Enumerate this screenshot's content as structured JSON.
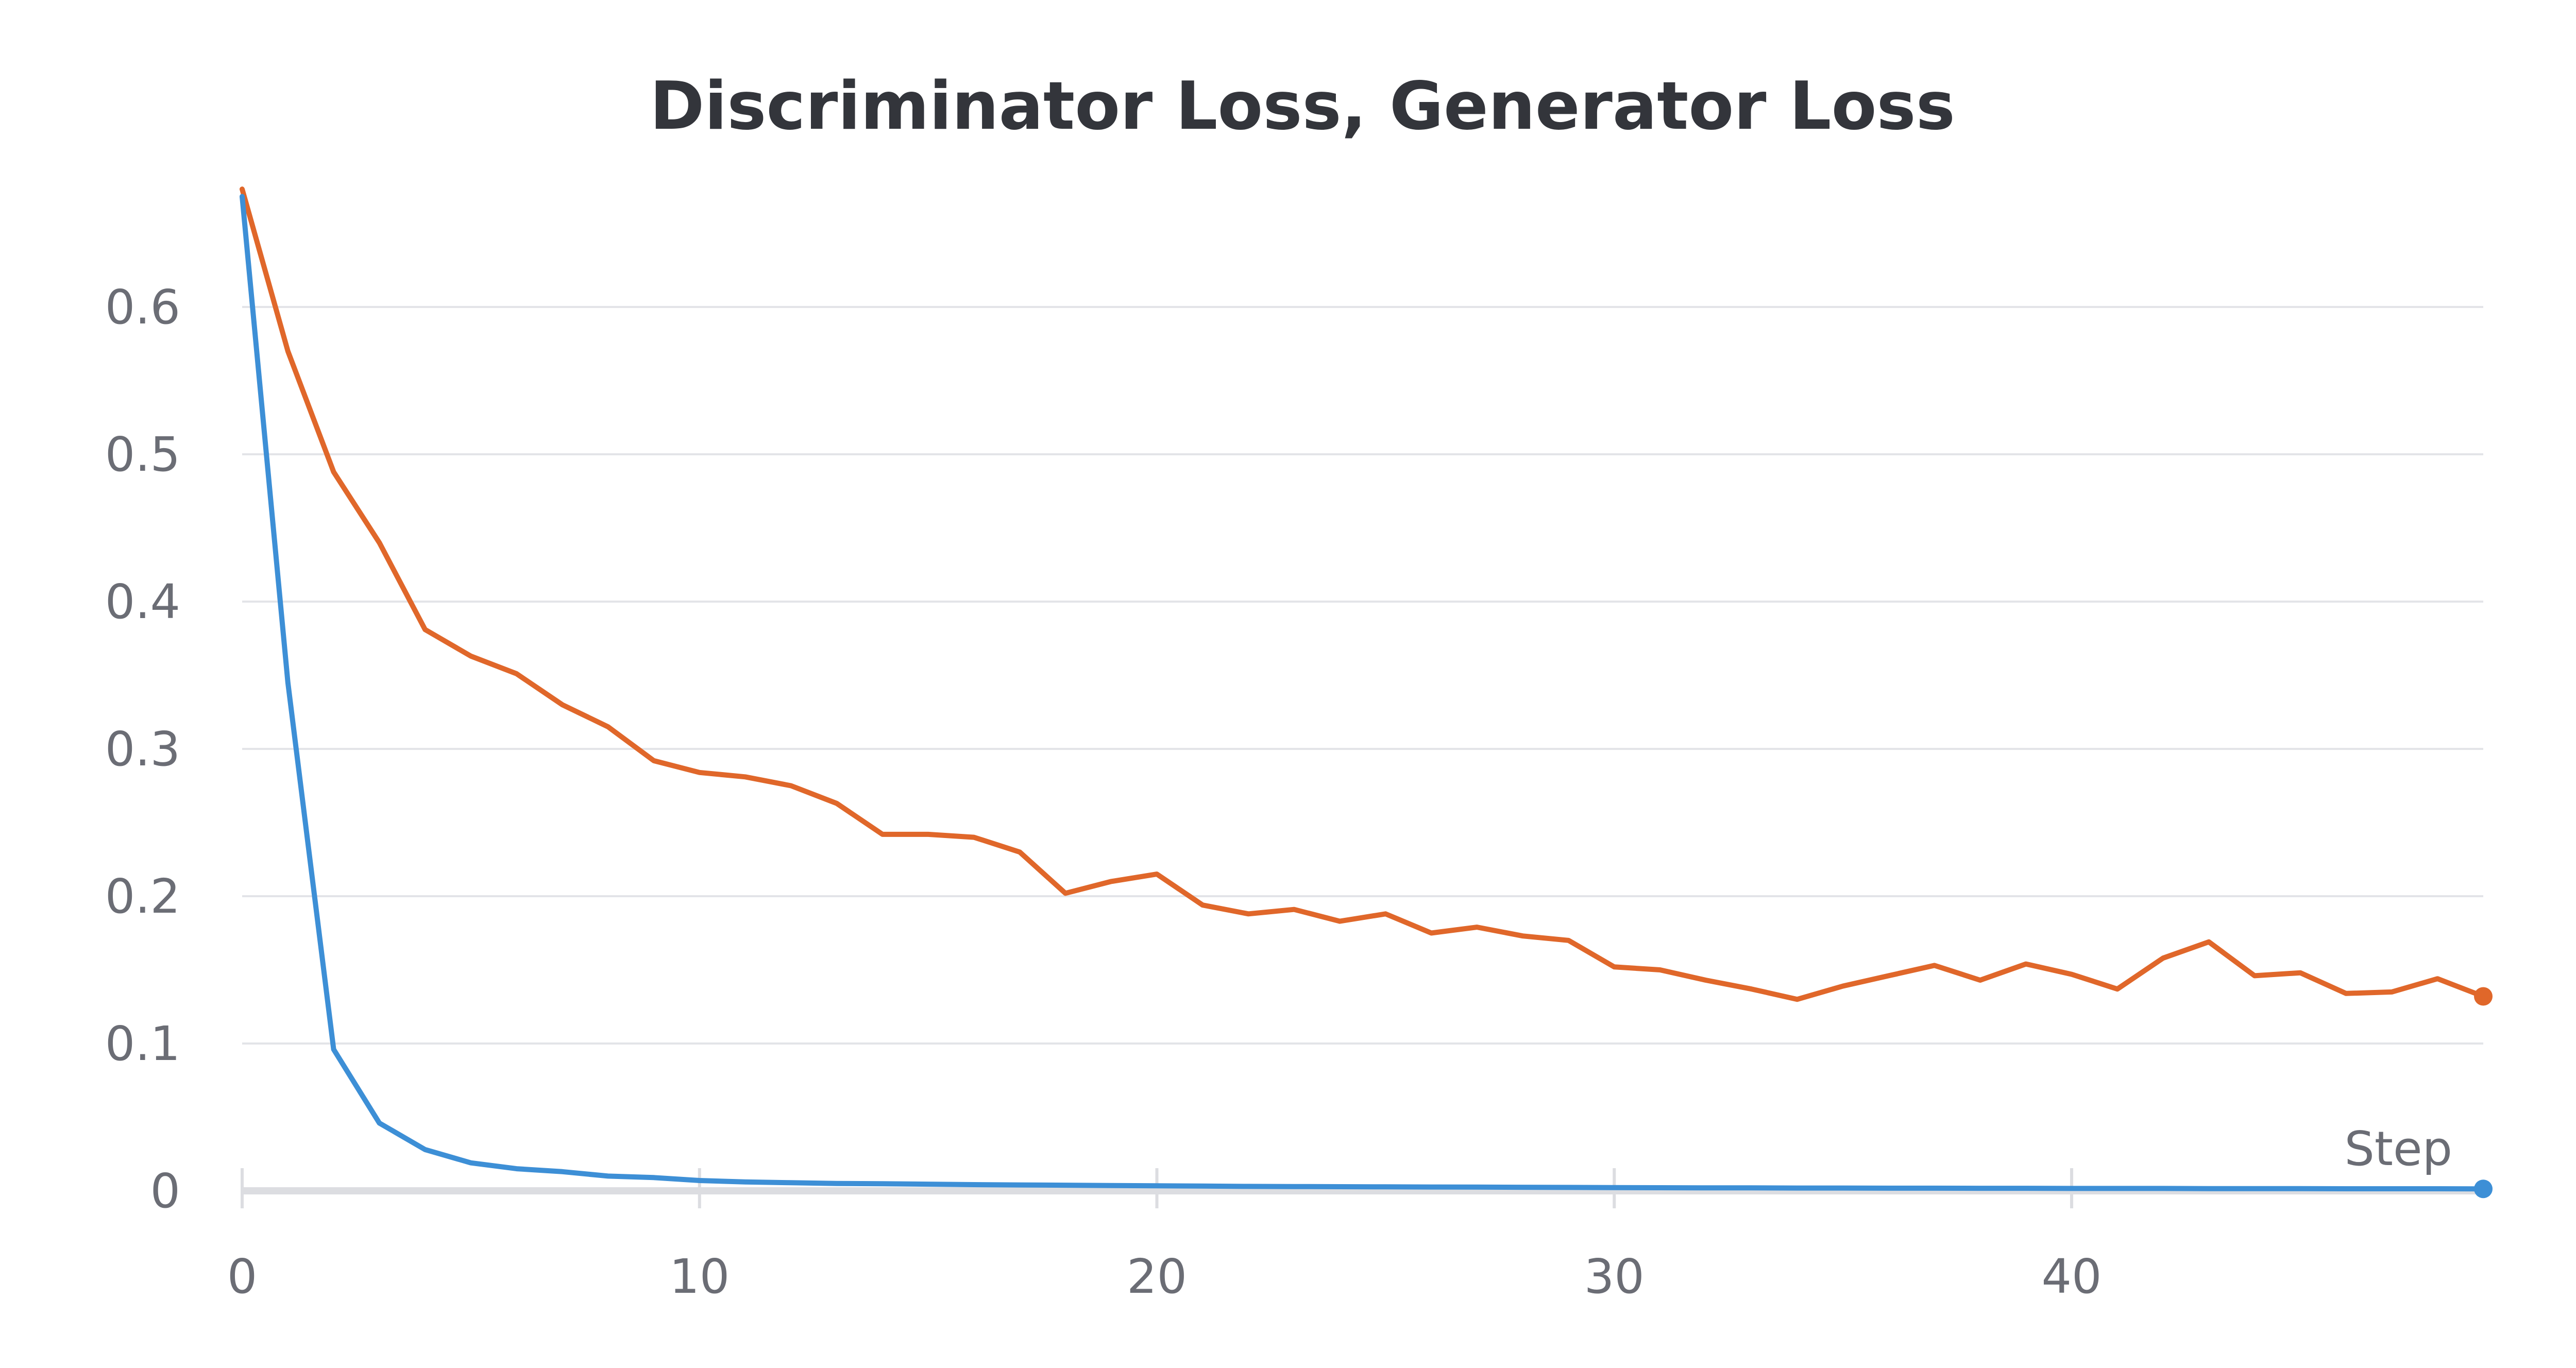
{
  "chart_data": {
    "type": "line",
    "title": "Discriminator Loss, Generator Loss",
    "xlabel": "Step",
    "ylabel": "",
    "xlim": [
      0,
      49
    ],
    "ylim": [
      0,
      0.7
    ],
    "x_ticks": [
      "0",
      "10",
      "20",
      "30",
      "40"
    ],
    "y_ticks": [
      "0",
      "0.1",
      "0.2",
      "0.3",
      "0.4",
      "0.5",
      "0.6"
    ],
    "grid": true,
    "legend": "none",
    "colors": {
      "orange": "#e0672a",
      "blue": "#3d8fd6",
      "grid": "#e3e4e8",
      "axis": "#dcdde1",
      "text": "#6b6d75",
      "title": "#33353b"
    },
    "series": [
      {
        "color": "#e0672a",
        "x": [
          0,
          1,
          2,
          3,
          4,
          5,
          6,
          7,
          8,
          9,
          10,
          11,
          12,
          13,
          14,
          15,
          16,
          17,
          18,
          19,
          20,
          21,
          22,
          23,
          24,
          25,
          26,
          27,
          28,
          29,
          30,
          31,
          32,
          33,
          34,
          35,
          36,
          37,
          38,
          39,
          40,
          41,
          42,
          43,
          44,
          45,
          46,
          47,
          48,
          49
        ],
        "values": [
          0.68,
          0.57,
          0.488,
          0.44,
          0.381,
          0.363,
          0.351,
          0.33,
          0.315,
          0.292,
          0.284,
          0.281,
          0.275,
          0.263,
          0.242,
          0.242,
          0.24,
          0.23,
          0.202,
          0.21,
          0.215,
          0.194,
          0.188,
          0.191,
          0.183,
          0.188,
          0.175,
          0.179,
          0.173,
          0.17,
          0.152,
          0.15,
          0.143,
          0.137,
          0.13,
          0.139,
          0.146,
          0.153,
          0.143,
          0.154,
          0.147,
          0.137,
          0.158,
          0.169,
          0.146,
          0.148,
          0.134,
          0.135,
          0.144,
          0.132
        ]
      },
      {
        "color": "#3d8fd6",
        "x": [
          0,
          1,
          2,
          3,
          4,
          5,
          6,
          7,
          8,
          9,
          10,
          11,
          12,
          13,
          14,
          15,
          16,
          17,
          18,
          19,
          20,
          21,
          22,
          23,
          24,
          25,
          26,
          27,
          28,
          29,
          30,
          31,
          32,
          33,
          34,
          35,
          36,
          37,
          38,
          39,
          40,
          41,
          42,
          43,
          44,
          45,
          46,
          47,
          48,
          49
        ],
        "values": [
          0.675,
          0.345,
          0.096,
          0.046,
          0.028,
          0.019,
          0.015,
          0.013,
          0.01,
          0.009,
          0.007,
          0.006,
          0.0055,
          0.005,
          0.0048,
          0.0045,
          0.0042,
          0.004,
          0.0038,
          0.0036,
          0.0034,
          0.0032,
          0.003,
          0.0029,
          0.0028,
          0.0027,
          0.0026,
          0.0025,
          0.0024,
          0.0023,
          0.0022,
          0.0021,
          0.002,
          0.002,
          0.0019,
          0.0019,
          0.0018,
          0.0018,
          0.0017,
          0.0017,
          0.0016,
          0.0016,
          0.0016,
          0.0015,
          0.0015,
          0.0015,
          0.0014,
          0.0014,
          0.0014,
          0.0013
        ]
      }
    ]
  }
}
